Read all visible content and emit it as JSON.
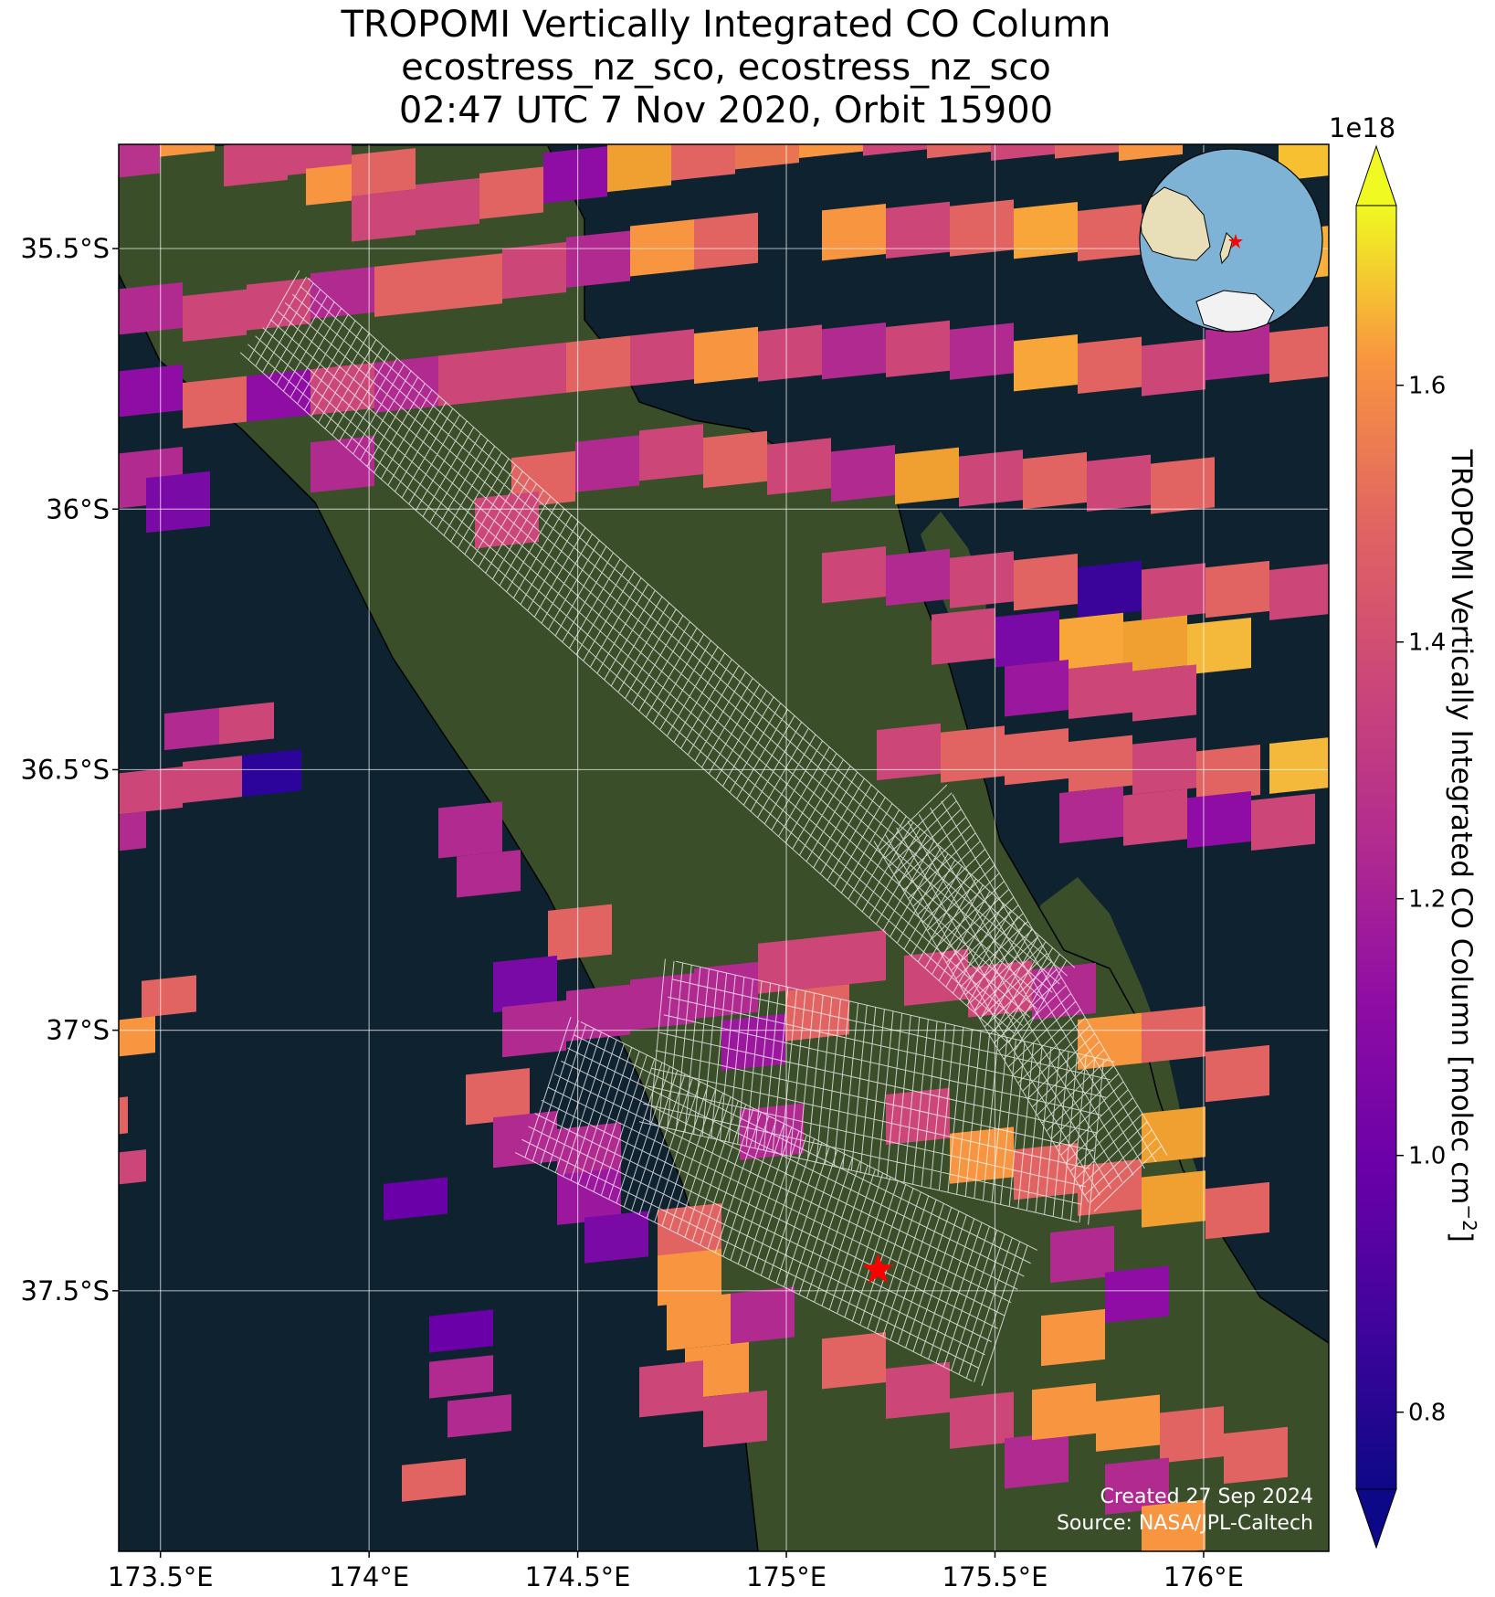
{
  "title": {
    "line1": "TROPOMI Vertically Integrated CO Column",
    "line2": "ecostress_nz_sco, ecostress_nz_sco",
    "line3": "02:47 UTC 7 Nov 2020, Orbit 15900"
  },
  "map": {
    "lon_range": [
      173.4,
      176.3
    ],
    "lat_range": [
      -38.0,
      -35.3
    ],
    "x_ticks": [
      "173.5°E",
      "174°E",
      "174.5°E",
      "175°E",
      "175.5°E",
      "176°E"
    ],
    "x_tick_values": [
      173.5,
      174.0,
      174.5,
      175.0,
      175.5,
      176.0
    ],
    "y_ticks": [
      "35.5°S",
      "36°S",
      "36.5°S",
      "37°S",
      "37.5°S"
    ],
    "y_tick_values": [
      -35.5,
      -36.0,
      -36.5,
      -37.0,
      -37.5
    ],
    "gridlines": true,
    "target_marker": {
      "lon": 175.22,
      "lat": -37.46,
      "color": "#ff0000",
      "icon": "star-icon"
    },
    "ocean_color": "#0f2230",
    "land_color": "#3a4e2a",
    "coastline_color": "#000000"
  },
  "colorbar": {
    "label": "TROPOMI Vertically Integrated CO Column [molec cm",
    "label_sup": "−2",
    "label_close": "]",
    "exponent": "1e18",
    "ticks": [
      "0.8",
      "1.0",
      "1.2",
      "1.4",
      "1.6"
    ],
    "tick_values": [
      0.8,
      1.0,
      1.2,
      1.4,
      1.6
    ],
    "vmin": 0.74,
    "vmax": 1.74,
    "colormap": "plasma",
    "extend": "both"
  },
  "inset_globe": {
    "icon": "globe-icon",
    "marker_icon": "star-icon",
    "ocean_color": "#7fb3d5"
  },
  "credits": {
    "line1": "Created 27 Sep 2024",
    "line2": "Source: NASA/JPL-Caltech"
  }
}
